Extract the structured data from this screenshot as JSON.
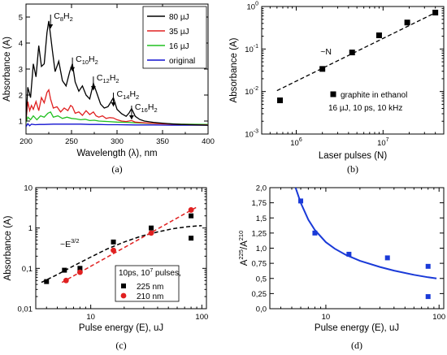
{
  "chart_data": [
    {
      "panel": "a",
      "caption": "(a)",
      "type": "line",
      "xlabel": "Wavelength (λ), nm",
      "ylabel": "Absorbance (A)",
      "xlim": [
        200,
        400
      ],
      "ylim": [
        0.5,
        5.5
      ],
      "xticks": [
        "200",
        "250",
        "300",
        "350",
        "400"
      ],
      "yticks": [
        "1",
        "2",
        "3",
        "4",
        "5"
      ],
      "legend": {
        "position": "top-right",
        "entries": [
          "80 µJ",
          "35 µJ",
          "16 µJ",
          "original"
        ]
      },
      "annotations": [
        {
          "base": "C",
          "n": "8",
          "tail": "H",
          "m": "2",
          "x": 227,
          "y": 5.0
        },
        {
          "base": "C",
          "n": "10",
          "tail": "H",
          "m": "2",
          "x": 251,
          "y": 3.35
        },
        {
          "base": "C",
          "n": "12",
          "tail": "H",
          "m": "2",
          "x": 274,
          "y": 2.62
        },
        {
          "base": "C",
          "n": "14",
          "tail": "H",
          "m": "2",
          "x": 296,
          "y": 2.0
        },
        {
          "base": "C",
          "n": "16",
          "tail": "H",
          "m": "2",
          "x": 316,
          "y": 1.5
        }
      ],
      "series": [
        {
          "name": "80 µJ",
          "color": "#000000",
          "x": [
            200,
            202,
            205,
            208,
            211,
            214,
            217,
            220,
            223,
            225,
            227,
            229,
            232,
            236,
            240,
            244,
            248,
            251,
            254,
            258,
            262,
            266,
            270,
            274,
            278,
            282,
            286,
            290,
            293,
            296,
            300,
            305,
            310,
            313,
            316,
            320,
            325,
            330,
            340,
            350,
            360,
            370,
            380,
            390,
            400
          ],
          "y": [
            1.0,
            2.3,
            1.9,
            3.2,
            2.7,
            3.9,
            3.1,
            3.2,
            4.4,
            4.85,
            4.3,
            3.7,
            2.9,
            3.3,
            2.55,
            2.35,
            2.9,
            3.2,
            2.5,
            2.15,
            2.35,
            2.0,
            1.85,
            2.45,
            2.05,
            1.65,
            1.5,
            1.55,
            1.72,
            1.9,
            1.45,
            1.28,
            1.18,
            1.3,
            1.48,
            1.18,
            1.06,
            1.0,
            0.95,
            0.92,
            0.89,
            0.87,
            0.86,
            0.85,
            0.84
          ]
        },
        {
          "name": "35 µJ",
          "color": "#e02020",
          "x": [
            200,
            202,
            204,
            206,
            208,
            211,
            214,
            217,
            220,
            223,
            225,
            227,
            230,
            234,
            238,
            242,
            246,
            249,
            251,
            254,
            258,
            262,
            266,
            270,
            274,
            277,
            280,
            284,
            288,
            292,
            296,
            300,
            305,
            310,
            316,
            320,
            330,
            340,
            350,
            360,
            380,
            400
          ],
          "y": [
            1.0,
            1.75,
            1.4,
            1.6,
            1.45,
            1.75,
            1.4,
            1.9,
            1.7,
            2.1,
            2.2,
            1.85,
            1.5,
            1.55,
            1.35,
            1.5,
            1.4,
            1.6,
            1.55,
            1.3,
            1.35,
            1.22,
            1.4,
            1.25,
            1.35,
            1.2,
            1.15,
            1.2,
            1.1,
            1.13,
            1.12,
            1.05,
            1.0,
            0.98,
            1.02,
            0.96,
            0.93,
            0.91,
            0.89,
            0.88,
            0.86,
            0.85
          ]
        },
        {
          "name": "16 µJ",
          "color": "#20c020",
          "x": [
            200,
            202,
            205,
            208,
            212,
            216,
            220,
            224,
            227,
            230,
            235,
            240,
            245,
            250,
            255,
            260,
            265,
            270,
            275,
            280,
            290,
            300,
            310,
            320,
            330,
            350,
            370,
            400
          ],
          "y": [
            0.95,
            1.15,
            1.05,
            1.2,
            1.05,
            1.2,
            1.15,
            1.3,
            1.35,
            1.15,
            1.2,
            1.1,
            1.15,
            1.1,
            1.08,
            1.05,
            1.07,
            1.02,
            1.03,
            1.0,
            0.98,
            0.96,
            0.95,
            0.93,
            0.92,
            0.9,
            0.88,
            0.87
          ]
        },
        {
          "name": "original",
          "color": "#1010d0",
          "x": [
            200,
            202,
            204,
            206,
            210,
            215,
            220,
            230,
            240,
            250,
            260,
            270,
            280,
            290,
            300,
            320,
            340,
            360,
            380,
            400
          ],
          "y": [
            0.78,
            0.9,
            0.82,
            0.88,
            0.86,
            0.87,
            0.87,
            0.88,
            0.88,
            0.88,
            0.88,
            0.87,
            0.87,
            0.86,
            0.86,
            0.85,
            0.85,
            0.84,
            0.84,
            0.84
          ]
        }
      ]
    },
    {
      "panel": "b",
      "caption": "(b)",
      "type": "scatter",
      "xlabel": "Laser pulses (N)",
      "ylabel": "Absorbance (A)",
      "xscale": "log",
      "yscale": "log",
      "xlim": [
        400000.0,
        50000000.0
      ],
      "ylim": [
        0.001,
        1
      ],
      "xticks": [
        {
          "v": 1000000.0,
          "base": "10",
          "exp": "6"
        },
        {
          "v": 10000000.0,
          "base": "10",
          "exp": "7"
        }
      ],
      "yticks": [
        {
          "v": 0.001,
          "base": "10",
          "exp": "-3"
        },
        {
          "v": 0.01,
          "base": "10",
          "exp": "-2"
        },
        {
          "v": 0.1,
          "base": "10",
          "exp": "-1"
        },
        {
          "v": 1,
          "base": "10",
          "exp": "0"
        }
      ],
      "annotation": "~N",
      "legend": {
        "position": "bottom-right",
        "entries": [
          "graphite in ethanol"
        ],
        "note": "16 µJ, 10 ps, 10 kHz"
      },
      "series": [
        {
          "name": "graphite in ethanol",
          "color": "#000000",
          "x": [
            650000.0,
            2000000.0,
            4400000.0,
            9000000.0,
            19000000.0,
            40000000.0
          ],
          "y": [
            0.0062,
            0.034,
            0.083,
            0.21,
            0.42,
            0.72
          ]
        }
      ],
      "fit": {
        "style": "dashed",
        "x": [
          600000.0,
          42000000.0
        ],
        "y": [
          0.0105,
          0.75
        ]
      }
    },
    {
      "panel": "c",
      "caption": "(c)",
      "type": "scatter",
      "xlabel": "Pulse energy (E), uJ",
      "ylabel": "Absorbance (A)",
      "xscale": "log",
      "yscale": "log",
      "xlim": [
        3.2,
        110
      ],
      "ylim": [
        0.01,
        10
      ],
      "xticks": [
        {
          "v": 10,
          "label": "10"
        },
        {
          "v": 100,
          "label": "100"
        }
      ],
      "yticks": [
        {
          "v": 0.01,
          "label": "0,01"
        },
        {
          "v": 0.1,
          "label": "0,1"
        },
        {
          "v": 1,
          "label": "1"
        },
        {
          "v": 10,
          "label": "10"
        }
      ],
      "annotation": {
        "base": "~E",
        "exp": "3/2"
      },
      "legend": {
        "position": "bottom-right",
        "title": "10ps, 10",
        "title_exp": "7",
        "title_tail": " pulses,",
        "entries": [
          "225 nm",
          "210 nm"
        ]
      },
      "series": [
        {
          "name": "225 nm",
          "color": "#000000",
          "marker": "square",
          "x": [
            4,
            5.8,
            8,
            16,
            35,
            80,
            80
          ],
          "y": [
            0.047,
            0.09,
            0.1,
            0.45,
            1.0,
            2.0,
            0.56
          ]
        },
        {
          "name": "210 nm",
          "color": "#e02020",
          "marker": "circle",
          "x": [
            6,
            8,
            16,
            35,
            80
          ],
          "y": [
            0.05,
            0.08,
            0.28,
            0.75,
            2.8
          ]
        }
      ],
      "fits": [
        {
          "color": "#000000",
          "style": "dashed",
          "x": [
            3.6,
            5,
            7,
            10,
            14,
            20,
            28,
            40,
            55,
            75,
            100
          ],
          "y": [
            0.045,
            0.07,
            0.115,
            0.19,
            0.3,
            0.45,
            0.62,
            0.8,
            0.96,
            1.08,
            1.15
          ]
        },
        {
          "color": "#e02020",
          "style": "dashed",
          "x": [
            5.5,
            90
          ],
          "y": [
            0.045,
            3.3
          ]
        }
      ]
    },
    {
      "panel": "d",
      "caption": "(d)",
      "type": "scatter",
      "xlabel": "Pulse energy (E), uJ",
      "ylabel": {
        "base": "A",
        "exp1": "225",
        "sep": "/A",
        "exp2": "210"
      },
      "xscale": "log",
      "yscale": "linear",
      "xlim": [
        3.2,
        110
      ],
      "ylim": [
        0.0,
        2.0
      ],
      "xticks": [
        {
          "v": 10,
          "label": "10"
        },
        {
          "v": 100,
          "label": "100"
        }
      ],
      "yticks": [
        {
          "v": 0.0,
          "label": "0,0"
        },
        {
          "v": 0.25,
          "label": "0,25"
        },
        {
          "v": 0.5,
          "label": "0,5"
        },
        {
          "v": 0.75,
          "label": "0,75"
        },
        {
          "v": 1.0,
          "label": "1,0"
        },
        {
          "v": 1.25,
          "label": "1,25"
        },
        {
          "v": 1.5,
          "label": "1,5"
        },
        {
          "v": 1.75,
          "label": "1,75"
        },
        {
          "v": 2.0,
          "label": "2,0"
        }
      ],
      "series": [
        {
          "name": "ratio",
          "color": "#1a3ad8",
          "marker": "square",
          "x": [
            6,
            8,
            16,
            35,
            80,
            80
          ],
          "y": [
            1.78,
            1.25,
            0.9,
            0.84,
            0.7,
            0.2
          ]
        }
      ],
      "fit": {
        "color": "#1a3ad8",
        "style": "solid",
        "x": [
          5.4,
          6,
          7,
          8,
          10,
          12,
          15,
          20,
          30,
          40,
          60,
          80,
          95
        ],
        "y": [
          2.0,
          1.75,
          1.47,
          1.3,
          1.1,
          0.99,
          0.89,
          0.79,
          0.69,
          0.63,
          0.56,
          0.52,
          0.5
        ]
      }
    }
  ]
}
